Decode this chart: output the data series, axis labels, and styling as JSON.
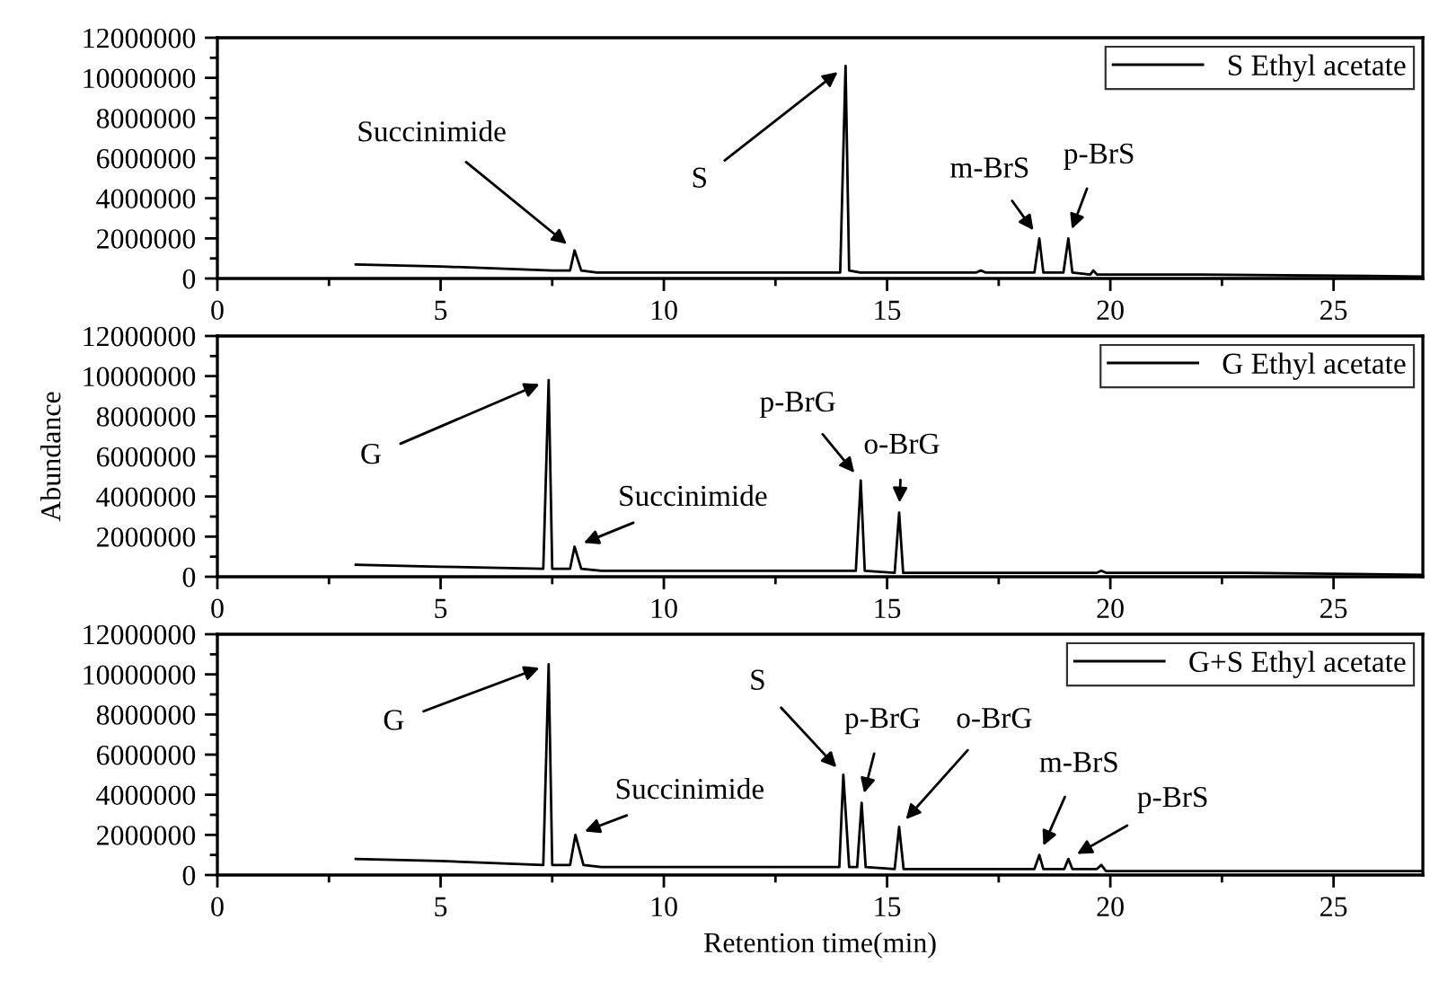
{
  "chart_data": [
    {
      "type": "line",
      "x": [
        3.1,
        5,
        7.5,
        7.9,
        8.0,
        8.15,
        8.5,
        10,
        13.95,
        14.07,
        14.15,
        14.4,
        17.0,
        17.1,
        17.2,
        18.3,
        18.41,
        18.5,
        18.95,
        19.06,
        19.15,
        19.55,
        19.62,
        19.7,
        22,
        27
      ],
      "series": [
        {
          "name": "S Ethyl acetate",
          "color": "#000000",
          "values": [
            700000,
            600000,
            400000,
            400000,
            1400000,
            400000,
            300000,
            300000,
            300000,
            10600000,
            400000,
            300000,
            300000,
            400000,
            300000,
            300000,
            2000000,
            300000,
            300000,
            2000000,
            300000,
            200000,
            400000,
            200000,
            200000,
            100000
          ]
        }
      ],
      "xlim": [
        0,
        27
      ],
      "ylim": [
        0,
        12000000
      ],
      "xticks": [
        0,
        5,
        10,
        15,
        20,
        25
      ],
      "yticks": [
        0,
        2000000,
        4000000,
        6000000,
        8000000,
        10000000,
        12000000
      ],
      "legend": "top right",
      "grid": false,
      "annotations": [
        {
          "text": "Succinimide",
          "x": 8.0,
          "y": 1400000
        },
        {
          "text": "S",
          "x": 14.07,
          "y": 10600000
        },
        {
          "text": "m-BrS",
          "x": 18.41,
          "y": 2000000
        },
        {
          "text": "p-BrS",
          "x": 19.06,
          "y": 2000000
        }
      ]
    },
    {
      "type": "line",
      "x": [
        3.1,
        5,
        7.3,
        7.42,
        7.5,
        7.9,
        8.0,
        8.15,
        8.6,
        12,
        14.3,
        14.41,
        14.5,
        15.17,
        15.27,
        15.36,
        17,
        19.7,
        19.8,
        19.9,
        23,
        27
      ],
      "series": [
        {
          "name": "G Ethyl acetate",
          "color": "#000000",
          "values": [
            600000,
            500000,
            400000,
            9800000,
            400000,
            400000,
            1500000,
            400000,
            300000,
            300000,
            300000,
            4800000,
            300000,
            200000,
            3200000,
            200000,
            200000,
            200000,
            300000,
            200000,
            200000,
            100000
          ]
        }
      ],
      "xlim": [
        0,
        27
      ],
      "ylim": [
        0,
        12000000
      ],
      "xticks": [
        0,
        5,
        10,
        15,
        20,
        25
      ],
      "yticks": [
        0,
        2000000,
        4000000,
        6000000,
        8000000,
        10000000,
        12000000
      ],
      "legend": "top right",
      "grid": false,
      "ylabel": "Abundance",
      "annotations": [
        {
          "text": "G",
          "x": 7.42,
          "y": 9800000
        },
        {
          "text": "Succinimide",
          "x": 8.0,
          "y": 1500000
        },
        {
          "text": "p-BrG",
          "x": 14.41,
          "y": 4800000
        },
        {
          "text": "o-BrG",
          "x": 15.27,
          "y": 3200000
        }
      ]
    },
    {
      "type": "line",
      "x": [
        3.1,
        5,
        7.3,
        7.42,
        7.5,
        7.9,
        8.02,
        8.2,
        8.6,
        13.5,
        13.93,
        14.02,
        14.15,
        14.33,
        14.43,
        14.52,
        15.17,
        15.27,
        15.37,
        18.3,
        18.41,
        18.5,
        18.97,
        19.06,
        19.15,
        19.7,
        19.8,
        19.9,
        22,
        27
      ],
      "series": [
        {
          "name": "G+S Ethyl acetate",
          "color": "#000000",
          "values": [
            800000,
            700000,
            500000,
            10500000,
            500000,
            500000,
            2000000,
            500000,
            400000,
            400000,
            400000,
            5000000,
            400000,
            400000,
            3600000,
            400000,
            300000,
            2400000,
            300000,
            300000,
            1000000,
            300000,
            300000,
            800000,
            300000,
            300000,
            500000,
            200000,
            200000,
            200000
          ]
        }
      ],
      "xlim": [
        0,
        27
      ],
      "ylim": [
        0,
        12000000
      ],
      "xticks": [
        0,
        5,
        10,
        15,
        20,
        25
      ],
      "yticks": [
        0,
        2000000,
        4000000,
        6000000,
        8000000,
        10000000,
        12000000
      ],
      "legend": "top right",
      "grid": false,
      "xlabel": "Retention time(min)",
      "annotations": [
        {
          "text": "G",
          "x": 7.42,
          "y": 10500000
        },
        {
          "text": "Succinimide",
          "x": 8.02,
          "y": 2000000
        },
        {
          "text": "S",
          "x": 14.02,
          "y": 5000000
        },
        {
          "text": "p-BrG",
          "x": 14.43,
          "y": 3600000
        },
        {
          "text": "o-BrG",
          "x": 15.27,
          "y": 2400000
        },
        {
          "text": "m-BrS",
          "x": 18.41,
          "y": 1000000
        },
        {
          "text": "p-BrS",
          "x": 19.06,
          "y": 800000
        }
      ]
    }
  ]
}
